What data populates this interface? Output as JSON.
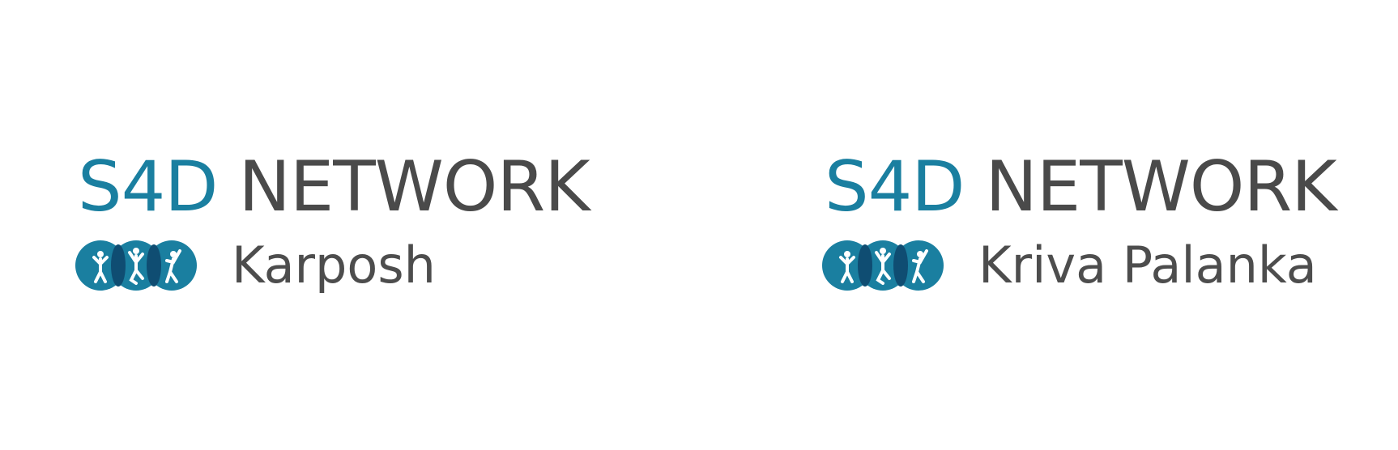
{
  "logos": [
    {
      "prefix": "S4D",
      "network": "NETWORK",
      "branch": "Karposh"
    },
    {
      "prefix": "S4D",
      "network": "NETWORK",
      "branch": "Kriva Palanka"
    }
  ],
  "colors": {
    "brand_blue": "#1a7fa0",
    "overlap_dark": "#0f4d72",
    "text_gray": "#4a4a4a",
    "figure_white": "#ffffff"
  },
  "icons": [
    "people-circles-icon"
  ]
}
